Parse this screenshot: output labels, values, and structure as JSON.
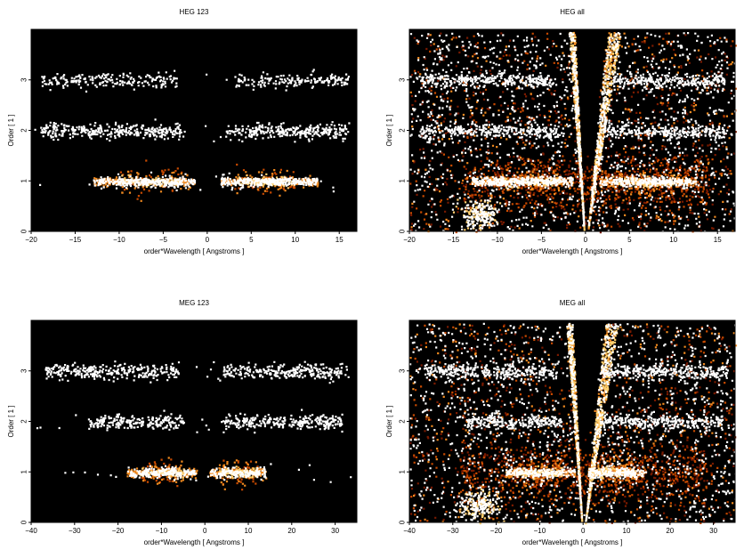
{
  "chart_data": [
    {
      "type": "heatmap",
      "title": "HEG 123",
      "xlabel": "order*Wavelength [ Angstroms ]",
      "ylabel": "Order [ 1 ]",
      "xlim": [
        -20,
        17
      ],
      "ylim": [
        0,
        4
      ],
      "xticks": [
        -20,
        -15,
        -10,
        -5,
        0,
        5,
        10,
        15
      ],
      "yticks": [
        0,
        1,
        2,
        3
      ],
      "background": "#000000",
      "colormap": [
        "#2a0000",
        "#7a1a00",
        "#c84a00",
        "#f08a20",
        "#ffd070",
        "#ffffff"
      ],
      "bands": [
        {
          "order": 1,
          "x_ranges": [
            [
              -13,
              -1.5
            ],
            [
              1.5,
              12.5
            ]
          ],
          "peak_ranges": [
            [
              -10,
              -3
            ],
            [
              3,
              10
            ]
          ],
          "intensity": "high"
        },
        {
          "order": 2,
          "x_ranges": [
            [
              -19,
              -2.5
            ],
            [
              2,
              16
            ]
          ],
          "intensity": "medium"
        },
        {
          "order": 3,
          "x_ranges": [
            [
              -19,
              -3.5
            ],
            [
              3,
              16
            ]
          ],
          "intensity": "low"
        }
      ]
    },
    {
      "type": "heatmap",
      "title": "HEG all",
      "xlabel": "order*Wavelength [ Angstroms ]",
      "ylabel": "Order [ 1 ]",
      "xlim": [
        -20,
        17
      ],
      "ylim": [
        0,
        4
      ],
      "xticks": [
        -20,
        -15,
        -10,
        -5,
        0,
        5,
        10,
        15
      ],
      "yticks": [
        0,
        1,
        2,
        3
      ],
      "background": "#000000",
      "colormap": [
        "#2a0000",
        "#7a1a00",
        "#c84a00",
        "#f08a20",
        "#ffd070",
        "#ffffff"
      ],
      "bands": [
        {
          "order": 1,
          "x_ranges": [
            [
              -13,
              -1.5
            ],
            [
              1.5,
              12.5
            ]
          ],
          "peak_ranges": [
            [
              -10,
              -3
            ],
            [
              3,
              10
            ]
          ],
          "intensity": "high"
        },
        {
          "order": 2,
          "x_ranges": [
            [
              -19,
              -2.5
            ],
            [
              2,
              16
            ]
          ],
          "intensity": "medium"
        },
        {
          "order": 3,
          "x_ranges": [
            [
              -19,
              -3.5
            ],
            [
              3,
              16
            ]
          ],
          "intensity": "medium"
        }
      ],
      "diffuse_background": true
    },
    {
      "type": "heatmap",
      "title": "MEG 123",
      "xlabel": "order*Wavelength [ Angstroms ]",
      "ylabel": "Order [ 1 ]",
      "xlim": [
        -40,
        35
      ],
      "ylim": [
        0,
        4
      ],
      "xticks": [
        -40,
        -30,
        -20,
        -10,
        0,
        10,
        20,
        30
      ],
      "yticks": [
        0,
        1,
        2,
        3
      ],
      "background": "#000000",
      "colormap": [
        "#2a0000",
        "#7a1a00",
        "#c84a00",
        "#f08a20",
        "#ffd070",
        "#ffffff"
      ],
      "bands": [
        {
          "order": 1,
          "x_ranges": [
            [
              -18,
              -2
            ],
            [
              1,
              14
            ]
          ],
          "peak_ranges": [
            [
              -15,
              -5
            ],
            [
              3,
              12
            ]
          ],
          "intensity": "high"
        },
        {
          "order": 2,
          "x_ranges": [
            [
              -27,
              -5
            ],
            [
              4,
              32
            ]
          ],
          "intensity": "medium"
        },
        {
          "order": 3,
          "x_ranges": [
            [
              -37,
              -6
            ],
            [
              4,
              33
            ]
          ],
          "intensity": "medium"
        }
      ]
    },
    {
      "type": "heatmap",
      "title": "MEG all",
      "xlabel": "order*Wavelength [ Angstroms ]",
      "ylabel": "Order [ 1 ]",
      "xlim": [
        -40,
        35
      ],
      "ylim": [
        0,
        4
      ],
      "xticks": [
        -40,
        -30,
        -20,
        -10,
        0,
        10,
        20,
        30
      ],
      "yticks": [
        0,
        1,
        2,
        3
      ],
      "background": "#000000",
      "colormap": [
        "#2a0000",
        "#7a1a00",
        "#c84a00",
        "#f08a20",
        "#ffd070",
        "#ffffff"
      ],
      "bands": [
        {
          "order": 1,
          "x_ranges": [
            [
              -18,
              -2
            ],
            [
              1,
              14
            ]
          ],
          "peak_ranges": [
            [
              -15,
              -5
            ],
            [
              3,
              12
            ]
          ],
          "intensity": "high"
        },
        {
          "order": 2,
          "x_ranges": [
            [
              -27,
              -5
            ],
            [
              4,
              32
            ]
          ],
          "intensity": "medium"
        },
        {
          "order": 3,
          "x_ranges": [
            [
              -37,
              -6
            ],
            [
              4,
              33
            ]
          ],
          "intensity": "medium"
        }
      ],
      "diffuse_background": true
    }
  ]
}
